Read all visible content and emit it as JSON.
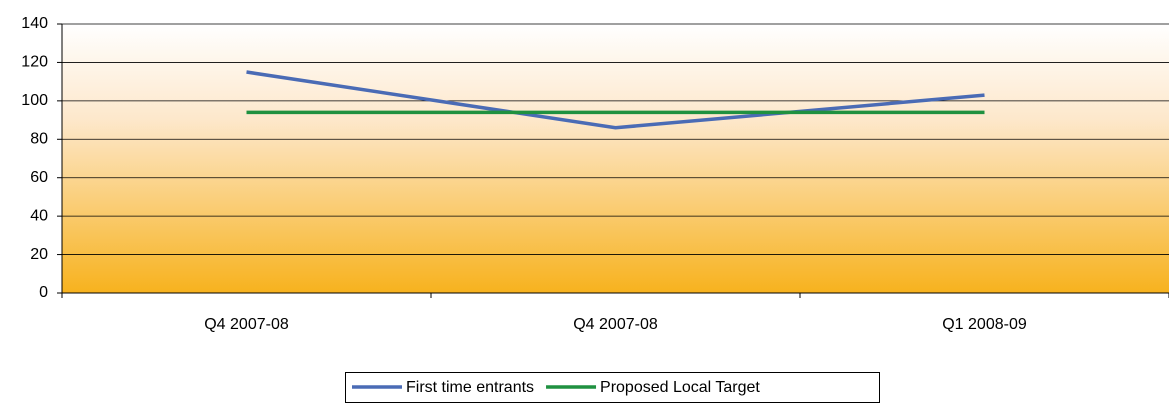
{
  "chart_data": {
    "type": "line",
    "categories": [
      "Q4 2007-08",
      "Q4 2007-08",
      "Q1 2008-09"
    ],
    "series": [
      {
        "name": "First time entrants",
        "color": "#4a6bb5",
        "values": [
          115,
          86,
          103
        ]
      },
      {
        "name": "Proposed Local Target",
        "color": "#1f9140",
        "values": [
          94,
          94,
          94
        ]
      }
    ],
    "ylim": [
      0,
      140
    ],
    "yticks": [
      0,
      20,
      40,
      60,
      80,
      100,
      120,
      140
    ],
    "grid": true
  }
}
